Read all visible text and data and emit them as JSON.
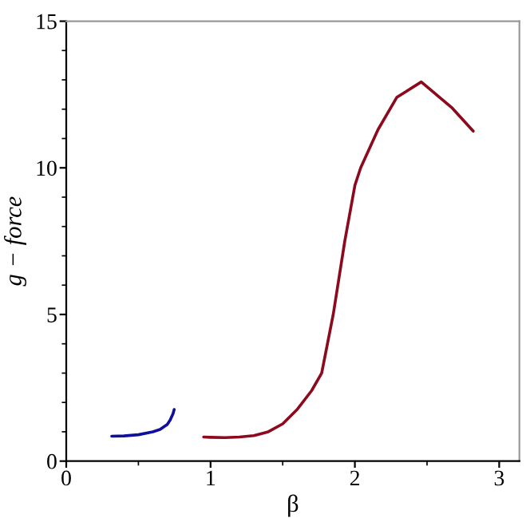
{
  "chart_data": {
    "type": "line",
    "xlabel": "β",
    "ylabel": "g − force",
    "xlim": [
      0,
      3.14
    ],
    "ylim": [
      0,
      15
    ],
    "xticks": [
      0,
      1,
      2,
      3
    ],
    "yticks": [
      0,
      5,
      10,
      15
    ],
    "grid": false,
    "legend": false,
    "marker": "none",
    "line_style": "solid",
    "series": [
      {
        "color": "#10109a",
        "x": [
          0.315,
          0.4,
          0.5,
          0.6,
          0.65,
          0.7,
          0.72,
          0.74,
          0.748
        ],
        "values": [
          0.85,
          0.86,
          0.9,
          1.0,
          1.08,
          1.25,
          1.4,
          1.62,
          1.76
        ]
      },
      {
        "color": "#8c0a1e",
        "x": [
          0.952,
          1.0,
          1.1,
          1.2,
          1.3,
          1.4,
          1.5,
          1.6,
          1.7,
          1.77,
          1.85,
          1.93,
          2.0,
          2.04,
          2.16,
          2.29,
          2.46,
          2.67,
          2.82
        ],
        "values": [
          0.82,
          0.81,
          0.8,
          0.82,
          0.87,
          1.0,
          1.27,
          1.76,
          2.4,
          3.0,
          5.0,
          7.5,
          9.4,
          10.0,
          11.3,
          12.4,
          12.93,
          12.06,
          11.25
        ]
      }
    ]
  }
}
